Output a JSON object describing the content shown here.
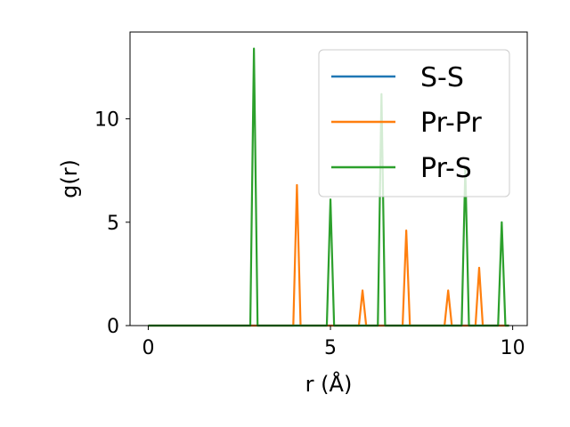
{
  "chart_data": {
    "type": "line",
    "title": "",
    "xlabel": "r (Å)",
    "ylabel": "g(r)",
    "xlim": [
      -0.5,
      10.4
    ],
    "ylim": [
      0,
      14.2
    ],
    "x_ticks": [
      0,
      5,
      10
    ],
    "x_tick_labels": [
      "0",
      "5",
      "10"
    ],
    "y_ticks": [
      0,
      5,
      10
    ],
    "y_tick_labels": [
      "0",
      "5",
      "10"
    ],
    "grid": false,
    "legend_position": "top-right",
    "series": [
      {
        "name": "S-S",
        "color": "#1f77b4",
        "x": [
          0,
          9.9
        ],
        "y": [
          0,
          0
        ]
      },
      {
        "name": "Pr-Pr",
        "color": "#ff7f0e",
        "x": [
          0,
          3.98,
          4.08,
          4.18,
          5.78,
          5.88,
          5.98,
          6.98,
          7.08,
          7.18,
          8.13,
          8.23,
          8.33,
          8.98,
          9.08,
          9.18,
          9.9
        ],
        "y": [
          0,
          0,
          6.8,
          0,
          0,
          1.7,
          0,
          0,
          4.6,
          0,
          0,
          1.7,
          0,
          0,
          2.8,
          0,
          0
        ]
      },
      {
        "name": "Pr-S",
        "color": "#2ca02c",
        "x": [
          0,
          2.8,
          2.9,
          3.0,
          4.9,
          5.0,
          5.1,
          6.3,
          6.4,
          6.5,
          8.6,
          8.7,
          8.8,
          9.6,
          9.7,
          9.8,
          9.9
        ],
        "y": [
          0,
          0,
          13.4,
          0,
          0,
          6.1,
          0,
          0,
          11.2,
          0,
          0,
          7.6,
          0,
          0,
          5.0,
          0,
          0
        ]
      }
    ]
  }
}
